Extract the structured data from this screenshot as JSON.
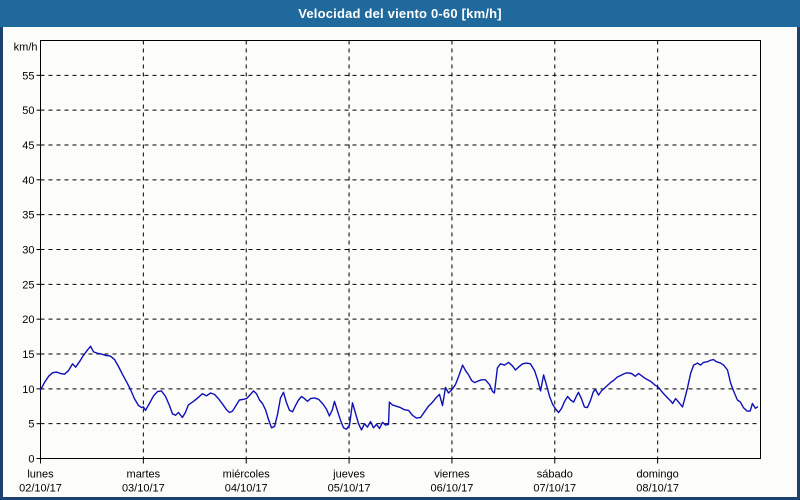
{
  "window": {
    "title": "Velocidad del viento 0-60 [km/h]"
  },
  "colors": {
    "titlebar_bg": "#1f699c",
    "titlebar_text": "#ffffff",
    "window_border": "#1c416e",
    "background": "#fcfdfa",
    "axis": "#000000",
    "grid": "#000000",
    "tick_text": "#000000",
    "series_line": "#1010b8"
  },
  "chart_data": {
    "type": "line",
    "title": "Velocidad del viento 0-60 [km/h]",
    "ylabel": "km/h",
    "xlabel": "",
    "ylim": [
      0,
      60
    ],
    "ytick_step": 5,
    "ytick_labels": [
      "0",
      "5",
      "10",
      "15",
      "20",
      "25",
      "30",
      "35",
      "40",
      "45",
      "50",
      "55"
    ],
    "grid": "dashed",
    "legend": "none",
    "x_hours_total": 168,
    "x_days": [
      {
        "name": "lunes",
        "date": "02/10/17"
      },
      {
        "name": "martes",
        "date": "03/10/17"
      },
      {
        "name": "miércoles",
        "date": "04/10/17"
      },
      {
        "name": "jueves",
        "date": "05/10/17"
      },
      {
        "name": "viernes",
        "date": "06/10/17"
      },
      {
        "name": "sábado",
        "date": "07/10/17"
      },
      {
        "name": "domingo",
        "date": "08/10/17"
      }
    ],
    "series": [
      {
        "name": "Velocidad del viento",
        "units": "km/h",
        "color": "#1010b8",
        "points": [
          [
            0,
            9.8
          ],
          [
            0.9,
            10.9
          ],
          [
            1.9,
            11.8
          ],
          [
            2.8,
            12.3
          ],
          [
            3.7,
            12.4
          ],
          [
            4.7,
            12.2
          ],
          [
            5.6,
            12.1
          ],
          [
            6.5,
            12.6
          ],
          [
            7.5,
            13.6
          ],
          [
            8.2,
            13.1
          ],
          [
            9.1,
            13.9
          ],
          [
            10,
            14.8
          ],
          [
            11,
            15.6
          ],
          [
            11.7,
            16.1
          ],
          [
            12.4,
            15.3
          ],
          [
            13.3,
            15.1
          ],
          [
            14.2,
            15
          ],
          [
            15.2,
            14.8
          ],
          [
            16.3,
            14.7
          ],
          [
            17.3,
            14.2
          ],
          [
            18.2,
            13.2
          ],
          [
            19.1,
            12.1
          ],
          [
            20.1,
            11
          ],
          [
            21,
            9.9
          ],
          [
            21.9,
            8.6
          ],
          [
            22.9,
            7.6
          ],
          [
            23.6,
            7.3
          ],
          [
            24,
            7.4
          ],
          [
            24.5,
            6.9
          ],
          [
            25.4,
            7.9
          ],
          [
            26.4,
            9
          ],
          [
            27.3,
            9.6
          ],
          [
            28.2,
            9.7
          ],
          [
            29.2,
            8.9
          ],
          [
            30.1,
            7.6
          ],
          [
            30.8,
            6.4
          ],
          [
            31.5,
            6.2
          ],
          [
            32.2,
            6.6
          ],
          [
            33.1,
            5.9
          ],
          [
            33.8,
            6.6
          ],
          [
            34.5,
            7.7
          ],
          [
            35.2,
            8
          ],
          [
            35.9,
            8.3
          ],
          [
            36.9,
            8.8
          ],
          [
            37.8,
            9.3
          ],
          [
            38.7,
            9
          ],
          [
            39.7,
            9.4
          ],
          [
            40.6,
            9.2
          ],
          [
            41.5,
            8.6
          ],
          [
            42.5,
            7.8
          ],
          [
            43.4,
            7
          ],
          [
            44.1,
            6.6
          ],
          [
            44.8,
            6.8
          ],
          [
            45.7,
            7.7
          ],
          [
            46.4,
            8.4
          ],
          [
            47.4,
            8.5
          ],
          [
            48.1,
            8.6
          ],
          [
            49,
            9.2
          ],
          [
            49.7,
            9.7
          ],
          [
            50.4,
            9.3
          ],
          [
            51.1,
            8.4
          ],
          [
            51.8,
            7.9
          ],
          [
            52.5,
            7
          ],
          [
            53.2,
            5.6
          ],
          [
            53.9,
            4.4
          ],
          [
            54.6,
            4.6
          ],
          [
            55.3,
            6.3
          ],
          [
            56,
            8.7
          ],
          [
            56.7,
            9.5
          ],
          [
            57.4,
            8
          ],
          [
            58.1,
            6.9
          ],
          [
            58.8,
            6.7
          ],
          [
            59.5,
            7.6
          ],
          [
            60.2,
            8.4
          ],
          [
            60.9,
            8.9
          ],
          [
            61.6,
            8.6
          ],
          [
            62.3,
            8.2
          ],
          [
            63,
            8.6
          ],
          [
            63.9,
            8.7
          ],
          [
            64.9,
            8.5
          ],
          [
            65.8,
            7.9
          ],
          [
            66.7,
            7.1
          ],
          [
            67.4,
            6.1
          ],
          [
            68.1,
            7
          ],
          [
            68.6,
            8.2
          ],
          [
            69.3,
            6.8
          ],
          [
            70,
            5.5
          ],
          [
            70.7,
            4.4
          ],
          [
            71.4,
            4.2
          ],
          [
            72.1,
            4.8
          ],
          [
            72.8,
            8
          ],
          [
            73.5,
            6.5
          ],
          [
            74.2,
            5
          ],
          [
            74.9,
            4.1
          ],
          [
            75.6,
            5
          ],
          [
            76.3,
            4.5
          ],
          [
            77,
            5.3
          ],
          [
            77.7,
            4.4
          ],
          [
            78.4,
            4.9
          ],
          [
            79.1,
            4.3
          ],
          [
            79.8,
            5.2
          ],
          [
            80.5,
            4.8
          ],
          [
            81.2,
            4.9
          ],
          [
            81.4,
            8.1
          ],
          [
            82.1,
            7.7
          ],
          [
            83.1,
            7.5
          ],
          [
            84,
            7.3
          ],
          [
            84.9,
            7
          ],
          [
            85.9,
            6.9
          ],
          [
            86.8,
            6.2
          ],
          [
            87.7,
            5.8
          ],
          [
            88.7,
            5.9
          ],
          [
            89.6,
            6.7
          ],
          [
            90.5,
            7.5
          ],
          [
            91.5,
            8.1
          ],
          [
            92.4,
            8.8
          ],
          [
            93.1,
            9.2
          ],
          [
            93.8,
            7.6
          ],
          [
            94.5,
            10.2
          ],
          [
            95.2,
            9.4
          ],
          [
            95.9,
            9.8
          ],
          [
            96.8,
            10.6
          ],
          [
            97.5,
            11.7
          ],
          [
            98.5,
            13.4
          ],
          [
            99.2,
            12.6
          ],
          [
            99.9,
            12
          ],
          [
            100.6,
            11.2
          ],
          [
            101.3,
            10.9
          ],
          [
            102,
            11.1
          ],
          [
            102.9,
            11.3
          ],
          [
            103.8,
            11.3
          ],
          [
            104.8,
            10.6
          ],
          [
            105.5,
            9.6
          ],
          [
            105.9,
            9.4
          ],
          [
            106.6,
            13
          ],
          [
            107.3,
            13.6
          ],
          [
            108.3,
            13.4
          ],
          [
            109.2,
            13.8
          ],
          [
            110.1,
            13.3
          ],
          [
            110.8,
            12.7
          ],
          [
            111.5,
            13.1
          ],
          [
            112.5,
            13.6
          ],
          [
            113.4,
            13.7
          ],
          [
            114.3,
            13.6
          ],
          [
            115.3,
            12.6
          ],
          [
            116,
            11.3
          ],
          [
            116.7,
            9.7
          ],
          [
            117.4,
            12
          ],
          [
            118.1,
            10.5
          ],
          [
            118.8,
            8.9
          ],
          [
            119.5,
            7.8
          ],
          [
            120.2,
            7.1
          ],
          [
            120.9,
            6.6
          ],
          [
            121.6,
            7.2
          ],
          [
            122.3,
            8.2
          ],
          [
            123,
            8.9
          ],
          [
            123.7,
            8.4
          ],
          [
            124.4,
            8.1
          ],
          [
            125.1,
            9
          ],
          [
            125.5,
            9.5
          ],
          [
            126.2,
            8.6
          ],
          [
            126.9,
            7.4
          ],
          [
            127.6,
            7.3
          ],
          [
            128.3,
            8.3
          ],
          [
            129,
            9.6
          ],
          [
            129.5,
            9.9
          ],
          [
            130.2,
            9.1
          ],
          [
            130.9,
            9.7
          ],
          [
            131.6,
            10.1
          ],
          [
            132.3,
            10.5
          ],
          [
            133,
            10.9
          ],
          [
            133.7,
            11.2
          ],
          [
            134.6,
            11.7
          ],
          [
            135.3,
            11.9
          ],
          [
            136.3,
            12.2
          ],
          [
            136.9,
            12.3
          ],
          [
            137.9,
            12.2
          ],
          [
            138.8,
            11.8
          ],
          [
            139.5,
            12.2
          ],
          [
            140.2,
            11.9
          ],
          [
            141.1,
            11.5
          ],
          [
            142.3,
            11.1
          ],
          [
            143.5,
            10.5
          ],
          [
            144.2,
            10.2
          ],
          [
            145.1,
            9.5
          ],
          [
            146.3,
            8.7
          ],
          [
            147,
            8.3
          ],
          [
            147.5,
            7.9
          ],
          [
            148.2,
            8.6
          ],
          [
            148.9,
            8.1
          ],
          [
            149.8,
            7.4
          ],
          [
            150.5,
            9
          ],
          [
            151,
            10.2
          ],
          [
            151.7,
            12.2
          ],
          [
            152.4,
            13.4
          ],
          [
            153.3,
            13.7
          ],
          [
            154,
            13.4
          ],
          [
            154.7,
            13.8
          ],
          [
            155.6,
            13.9
          ],
          [
            156.3,
            14.1
          ],
          [
            157,
            14.2
          ],
          [
            157.7,
            13.9
          ],
          [
            158.7,
            13.7
          ],
          [
            159.4,
            13.4
          ],
          [
            160.3,
            12.7
          ],
          [
            161,
            10.9
          ],
          [
            161.7,
            9.7
          ],
          [
            162.6,
            8.4
          ],
          [
            163.3,
            8.1
          ],
          [
            164,
            7.3
          ],
          [
            164.9,
            6.8
          ],
          [
            165.6,
            6.8
          ],
          [
            166.1,
            7.9
          ],
          [
            166.8,
            7.2
          ],
          [
            167.3,
            7.4
          ]
        ]
      }
    ]
  }
}
